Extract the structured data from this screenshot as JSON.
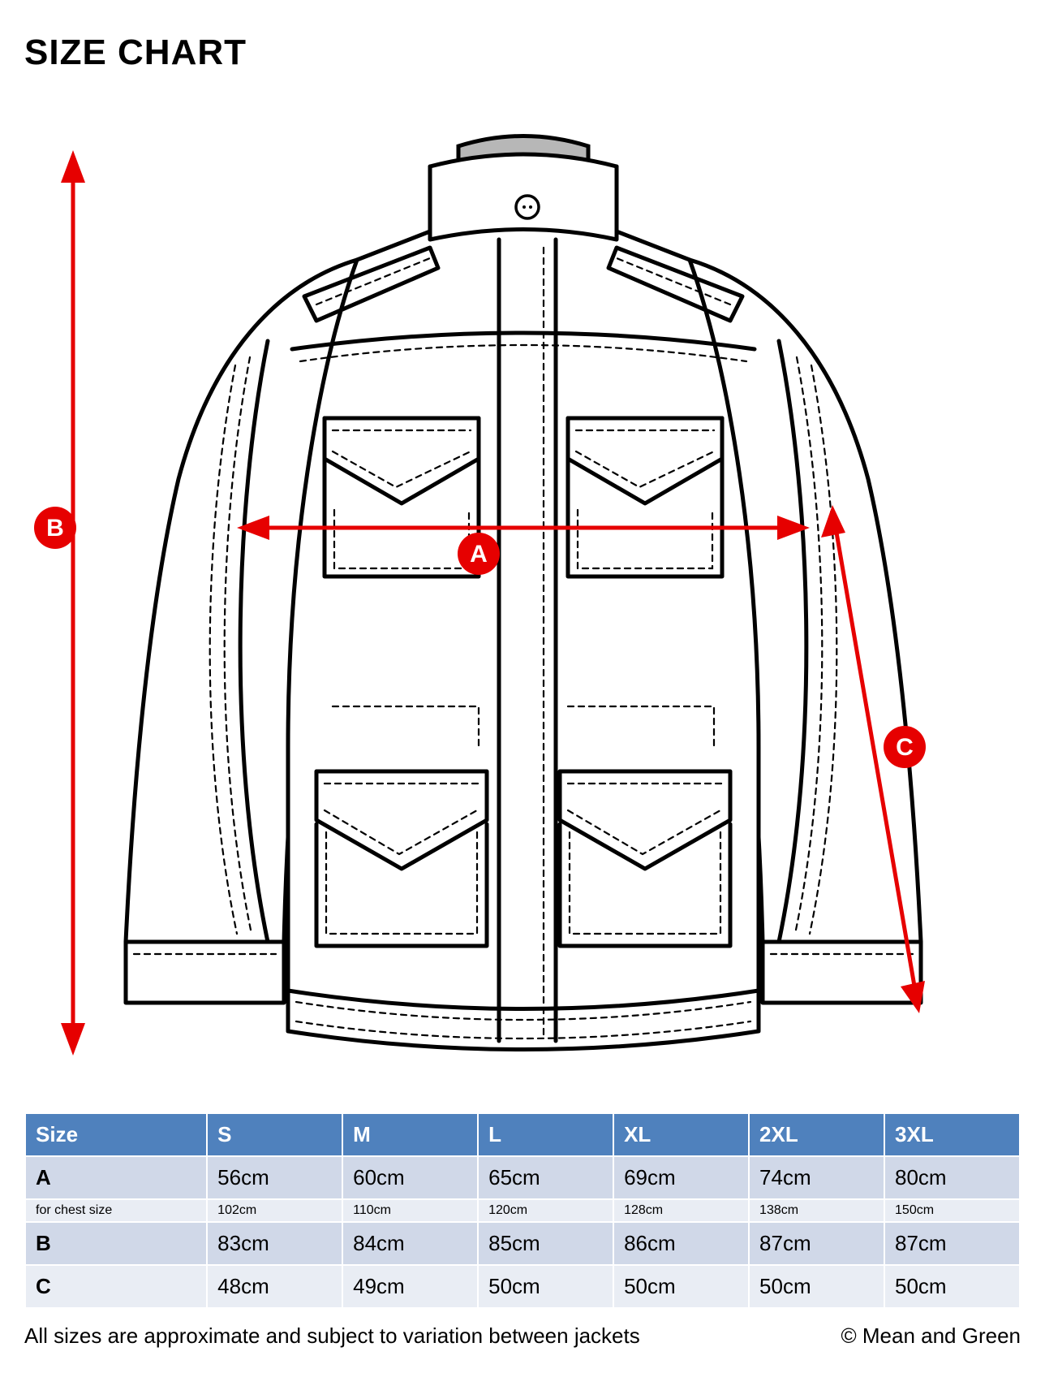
{
  "title": "SIZE CHART",
  "badges": {
    "A": "A",
    "B": "B",
    "C": "C"
  },
  "table": {
    "header": [
      "Size",
      "S",
      "M",
      "L",
      "XL",
      "2XL",
      "3XL"
    ],
    "rows": [
      {
        "label": "A",
        "cells": [
          "56cm",
          "60cm",
          "65cm",
          "69cm",
          "74cm",
          "80cm"
        ],
        "sub": false
      },
      {
        "label": "for chest size",
        "cells": [
          "102cm",
          "110cm",
          "120cm",
          "128cm",
          "138cm",
          "150cm"
        ],
        "sub": true
      },
      {
        "label": "B",
        "cells": [
          "83cm",
          "84cm",
          "85cm",
          "86cm",
          "87cm",
          "87cm"
        ],
        "sub": false
      },
      {
        "label": "C",
        "cells": [
          "48cm",
          "49cm",
          "50cm",
          "50cm",
          "50cm",
          "50cm"
        ],
        "sub": false
      }
    ]
  },
  "footer": {
    "note": "All sizes are approximate and subject to variation between jackets",
    "copyright": "© Mean and Green"
  },
  "colors": {
    "accent_red": "#e60000",
    "table_header_bg": "#4f81bd",
    "table_row_odd": "#d0d8e8",
    "table_row_even": "#e9edf4"
  }
}
